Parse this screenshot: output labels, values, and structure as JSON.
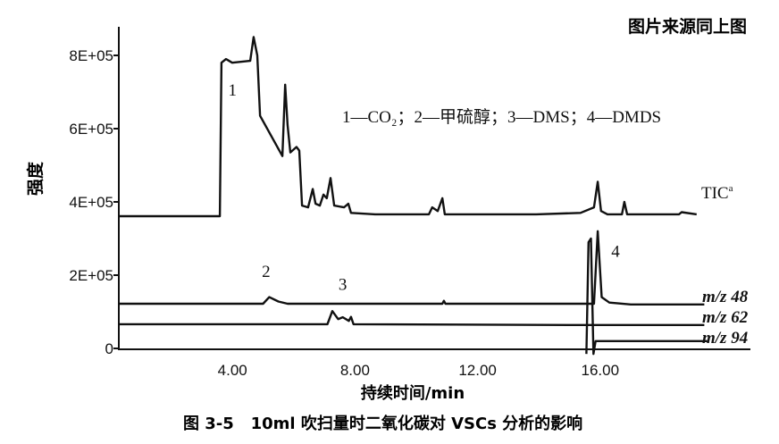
{
  "header_note": "图片来源同上图",
  "caption": "图 3-5   10ml 吹扫量时二氧化碳对 VSCs 分析的影响",
  "chart_data": {
    "type": "line",
    "title": "",
    "xlabel": "持续时间/min",
    "ylabel": "强度",
    "xlim": [
      0.3,
      21
    ],
    "ylim": [
      0,
      850000
    ],
    "grid": false,
    "x_ticks": [
      {
        "value": 4,
        "label": "4.00"
      },
      {
        "value": 8,
        "label": "8.00"
      },
      {
        "value": 12,
        "label": "12.00"
      },
      {
        "value": 16,
        "label": "16.00"
      }
    ],
    "y_ticks": [
      {
        "value": 0,
        "label": "0"
      },
      {
        "value": 200000,
        "label": "2E+05"
      },
      {
        "value": 400000,
        "label": "4E+05"
      },
      {
        "value": 600000,
        "label": "6E+05"
      },
      {
        "value": 800000,
        "label": "8E+05"
      }
    ],
    "legend_text": "1—CO₂；2—甲硫醇；3—DMS；4—DMDS",
    "peak_labels": [
      {
        "label": "1",
        "x": 4.0,
        "y": 690000
      },
      {
        "label": "2",
        "x": 5.1,
        "y": 195000
      },
      {
        "label": "3",
        "x": 7.6,
        "y": 160000
      },
      {
        "label": "4",
        "x": 16.5,
        "y": 250000
      }
    ],
    "series": [
      {
        "name": "TIC",
        "name_sup": "a",
        "x": [
          0.29,
          3.59,
          3.64,
          3.79,
          3.99,
          4.58,
          4.69,
          4.81,
          4.9,
          5.63,
          5.72,
          5.8,
          5.89,
          6.09,
          6.18,
          6.27,
          6.47,
          6.62,
          6.71,
          6.85,
          6.97,
          7.08,
          7.2,
          7.32,
          7.64,
          7.78,
          7.87,
          8.66,
          10.41,
          10.52,
          10.7,
          10.85,
          10.93,
          13.91,
          15.36,
          15.8,
          15.92,
          16.03,
          16.24,
          16.71,
          16.79,
          16.88,
          18.57,
          18.66,
          19.15
        ],
        "y": [
          361000,
          361000,
          780000,
          790000,
          780000,
          785000,
          850000,
          800000,
          635000,
          525000,
          720000,
          610000,
          535000,
          550000,
          540000,
          390000,
          385000,
          435000,
          395000,
          390000,
          420000,
          410000,
          465000,
          390000,
          385000,
          395000,
          370000,
          366000,
          366000,
          385000,
          375000,
          410000,
          366000,
          366000,
          370000,
          385000,
          455000,
          375000,
          366000,
          366000,
          400000,
          366000,
          366000,
          372000,
          366000
        ]
      },
      {
        "name": "m/z 48",
        "x": [
          0.29,
          5.0,
          5.2,
          5.5,
          5.8,
          10.85,
          10.9,
          10.95,
          15.8,
          15.92,
          16.05,
          16.3,
          17.0,
          19.4
        ],
        "y": [
          122000,
          122000,
          140000,
          128000,
          122000,
          122000,
          130000,
          122000,
          122000,
          320000,
          140000,
          125000,
          120000,
          120000
        ]
      },
      {
        "name": "m/z 62",
        "x": [
          0.29,
          7.1,
          7.26,
          7.45,
          7.6,
          7.8,
          7.87,
          7.95,
          15.0,
          19.4
        ],
        "y": [
          66000,
          66000,
          102000,
          80000,
          85000,
          75000,
          86000,
          66000,
          64000,
          64000
        ]
      },
      {
        "name": "m/z 94",
        "x": [
          15.55,
          15.62,
          15.7,
          15.78,
          15.85,
          15.95,
          19.5
        ],
        "y": [
          -15000,
          290000,
          300000,
          -15000,
          20000,
          20000,
          20000
        ]
      }
    ]
  }
}
